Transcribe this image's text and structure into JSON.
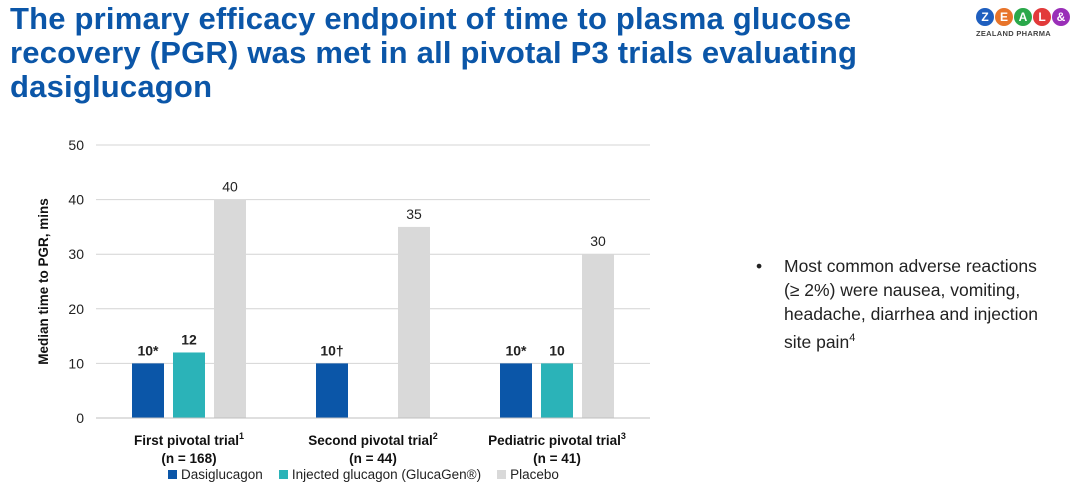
{
  "slide": {
    "title": "The primary efficacy endpoint of time to plasma glucose recovery (PGR) was met in all pivotal P3 trials evaluating dasiglucagon",
    "logo": {
      "letters": [
        "Z",
        "E",
        "A",
        "L",
        "&"
      ],
      "letter_colors": [
        "#1f5fbf",
        "#e8742a",
        "#2aa84a",
        "#e23a3a",
        "#9a2fb8"
      ],
      "subtitle": "ZEALAND PHARMA"
    },
    "bullet": {
      "marker": "•",
      "text": "Most common adverse reactions (≥ 2%) were nausea, vomiting, headache, diarrhea and injection site pain",
      "superscript": "4"
    }
  },
  "chart_data": {
    "type": "bar",
    "ylabel": "Median time to PGR, mins",
    "ylim": [
      0,
      50
    ],
    "yticks": [
      0,
      10,
      20,
      30,
      40,
      50
    ],
    "grid": true,
    "legend_position": "bottom",
    "groups": [
      {
        "name": "First pivotal trial",
        "sup": "1",
        "n": "(n = 168)"
      },
      {
        "name": "Second pivotal trial",
        "sup": "2",
        "n": "(n = 44)"
      },
      {
        "name": "Pediatric pivotal trial",
        "sup": "3",
        "n": "(n = 41)"
      }
    ],
    "series": [
      {
        "name": "Dasiglucagon",
        "color": "#0b56a8",
        "values": [
          10,
          10,
          10
        ],
        "labels": [
          "10*",
          "10†",
          "10*"
        ]
      },
      {
        "name": "Injected glucagon (GlucaGen®)",
        "color": "#2bb3b8",
        "values": [
          12,
          null,
          10
        ],
        "labels": [
          "12",
          "",
          "10"
        ]
      },
      {
        "name": "Placebo",
        "color": "#d9d9d9",
        "values": [
          40,
          35,
          30
        ],
        "labels": [
          "40",
          "35",
          "30"
        ]
      }
    ]
  }
}
